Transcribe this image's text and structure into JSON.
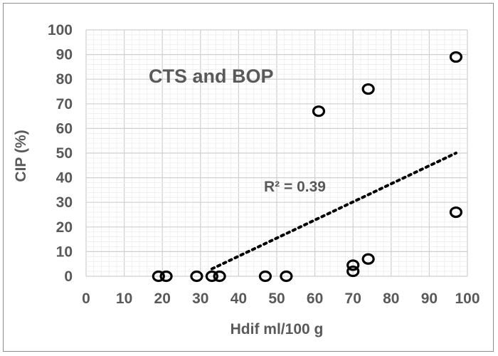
{
  "chart_data": {
    "type": "scatter",
    "title": "",
    "xlabel": "Hdif ml/100 g",
    "ylabel": "CIP (%)",
    "xlim": [
      0,
      100
    ],
    "ylim": [
      0,
      100
    ],
    "xticks": [
      0,
      10,
      20,
      30,
      40,
      50,
      60,
      70,
      80,
      90,
      100
    ],
    "yticks": [
      0,
      10,
      20,
      30,
      40,
      50,
      60,
      70,
      80,
      90,
      100
    ],
    "grid": true,
    "annotation": "CTS and BOP",
    "trendline": {
      "type": "linear",
      "label": "R² = 0.39",
      "x_start": 33,
      "y_start": 3,
      "x_end": 97,
      "y_end": 50
    },
    "series": [
      {
        "marker": "open-circle",
        "points": [
          {
            "x": 19,
            "y": 0
          },
          {
            "x": 21,
            "y": 0
          },
          {
            "x": 29,
            "y": 0
          },
          {
            "x": 33,
            "y": 0
          },
          {
            "x": 35,
            "y": 0
          },
          {
            "x": 47,
            "y": 0
          },
          {
            "x": 52.5,
            "y": 0
          },
          {
            "x": 61,
            "y": 67
          },
          {
            "x": 70,
            "y": 2
          },
          {
            "x": 70,
            "y": 4.5
          },
          {
            "x": 74,
            "y": 7
          },
          {
            "x": 74,
            "y": 76
          },
          {
            "x": 97,
            "y": 89
          },
          {
            "x": 97,
            "y": 26
          }
        ]
      }
    ]
  }
}
